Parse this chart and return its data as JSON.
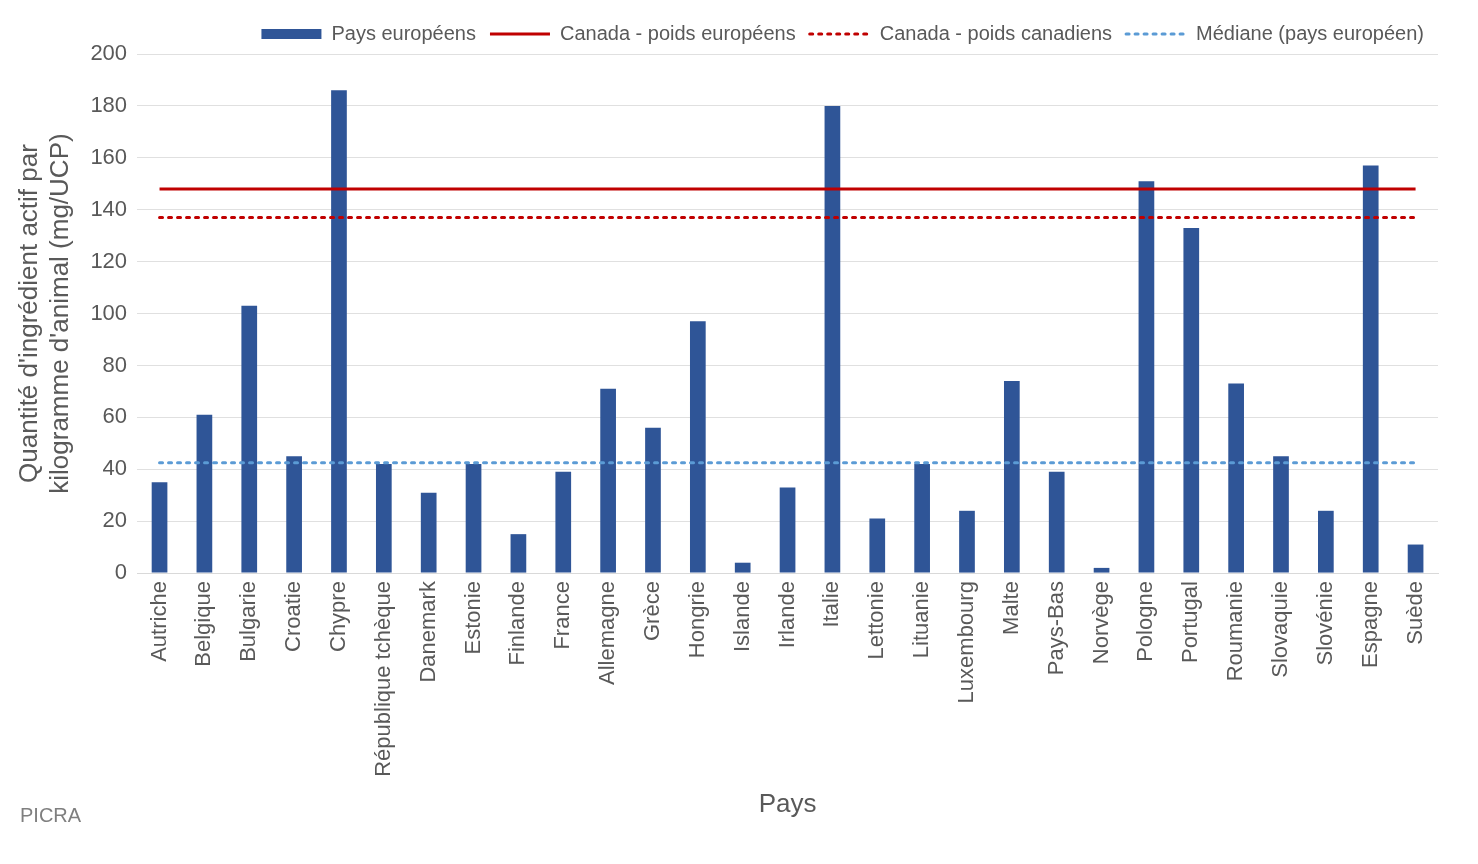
{
  "chart_data": {
    "type": "bar",
    "xlabel": "Pays",
    "ylabel": "Quantité d'ingrédient actif par kilogramme d'animal (mg/UCP)",
    "categories": [
      "Autriche",
      "Belgique",
      "Bulgarie",
      "Croatie",
      "Chypre",
      "République tchèque",
      "Danemark",
      "Estonie",
      "Finlande",
      "France",
      "Allemagne",
      "Grèce",
      "Hongrie",
      "Islande",
      "Irlande",
      "Italie",
      "Lettonie",
      "Lituanie",
      "Luxembourg",
      "Malte",
      "Pays-Bas",
      "Norvège",
      "Pologne",
      "Portugal",
      "Roumanie",
      "Slovaquie",
      "Slovénie",
      "Espagne",
      "Suède"
    ],
    "series": [
      {
        "name": "Pays européens",
        "color": "#2f5597",
        "values": [
          35,
          61,
          103,
          45,
          186,
          42,
          31,
          42,
          15,
          39,
          71,
          56,
          97,
          4,
          33,
          180,
          21,
          42,
          24,
          74,
          39,
          2,
          151,
          133,
          73,
          45,
          24,
          157,
          11
        ]
      },
      {
        "name": "Canada - poids européens",
        "type": "line",
        "line_style": "solid",
        "color": "#c00000",
        "values": [
          148,
          148,
          148,
          148,
          148,
          148,
          148,
          148,
          148,
          148,
          148,
          148,
          148,
          148,
          148,
          148,
          148,
          148,
          148,
          148,
          148,
          148,
          148,
          148,
          148,
          148,
          148,
          148,
          148
        ]
      },
      {
        "name": "Canada - poids canadiens",
        "type": "line",
        "line_style": "dotted",
        "color": "#c00000",
        "values": [
          137,
          137,
          137,
          137,
          137,
          137,
          137,
          137,
          137,
          137,
          137,
          137,
          137,
          137,
          137,
          137,
          137,
          137,
          137,
          137,
          137,
          137,
          137,
          137,
          137,
          137,
          137,
          137,
          137
        ]
      },
      {
        "name": "Médiane (pays européen)",
        "type": "line",
        "line_style": "dotted",
        "color": "#5b9bd5",
        "values": [
          42.5,
          42.5,
          42.5,
          42.5,
          42.5,
          42.5,
          42.5,
          42.5,
          42.5,
          42.5,
          42.5,
          42.5,
          42.5,
          42.5,
          42.5,
          42.5,
          42.5,
          42.5,
          42.5,
          42.5,
          42.5,
          42.5,
          42.5,
          42.5,
          42.5,
          42.5,
          42.5,
          42.5,
          42.5
        ]
      }
    ],
    "ylim": [
      0,
      200
    ],
    "yticks": [
      0,
      20,
      40,
      60,
      80,
      100,
      120,
      140,
      160,
      180,
      200
    ],
    "grid": "y",
    "legend": "top right",
    "marker": "none",
    "annotations": [
      "PICRA"
    ]
  }
}
